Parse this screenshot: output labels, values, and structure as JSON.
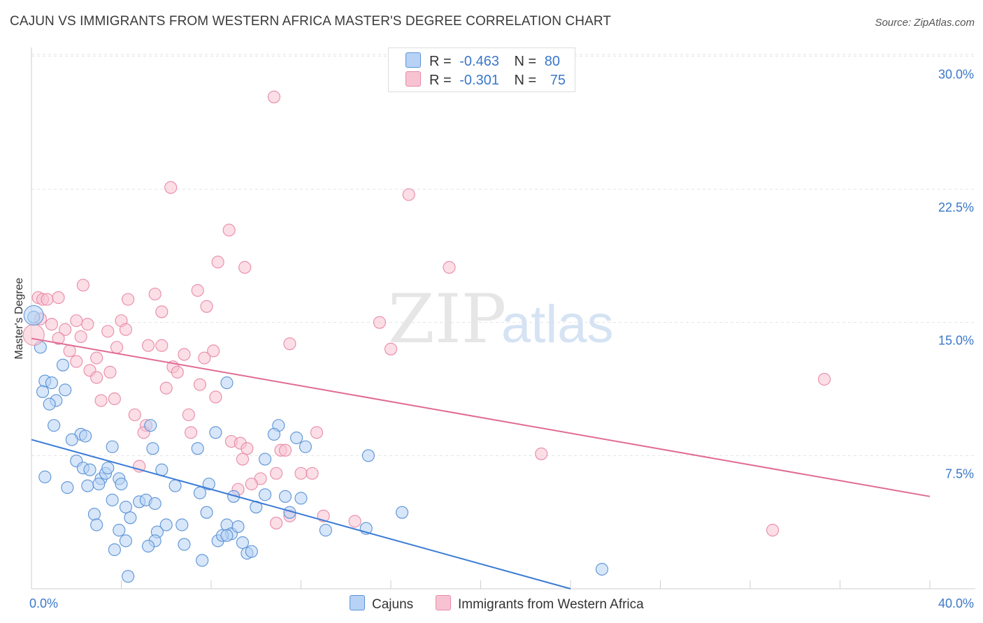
{
  "title": "CAJUN VS IMMIGRANTS FROM WESTERN AFRICA MASTER'S DEGREE CORRELATION CHART",
  "source": "Source: ZipAtlas.com",
  "watermark": {
    "zip": "ZIP",
    "atlas": "atlas"
  },
  "colors": {
    "blue_fill": "#b7d2f4",
    "blue_stroke": "#5b93d6",
    "blue_line": "#3a7bd5",
    "pink_fill": "#f7c3d2",
    "pink_stroke": "#e98aa8",
    "pink_line": "#e06b94",
    "tick_text": "#3a78c9",
    "grid": "#e3e3e3"
  },
  "legend": {
    "rows": [
      {
        "r_label": "R =",
        "r_value": "-0.463",
        "n_label": "N =",
        "n_value": "80"
      },
      {
        "r_label": "R =",
        "r_value": "-0.301",
        "n_label": "N =",
        "n_value": "75"
      }
    ]
  },
  "chart_data": {
    "type": "scatter",
    "title": "CAJUN VS IMMIGRANTS FROM WESTERN AFRICA MASTER'S DEGREE CORRELATION CHART",
    "xlabel": "",
    "ylabel": "Master's Degree",
    "xlim": [
      0,
      40
    ],
    "ylim": [
      0,
      30.8
    ],
    "x_tick_labels": [
      "0.0%",
      "40.0%"
    ],
    "y_ticks": [
      7.5,
      15.0,
      22.5,
      30.0
    ],
    "y_tick_labels": [
      "7.5%",
      "15.0%",
      "22.5%",
      "30.0%"
    ],
    "grid": true,
    "legend_position": "top-center",
    "series": [
      {
        "name": "Cajuns",
        "trend": {
          "x": [
            0,
            24
          ],
          "y": [
            8.4,
            0.0
          ]
        },
        "points": [
          [
            0.1,
            15.3
          ],
          [
            0.4,
            13.6
          ],
          [
            1.4,
            12.6
          ],
          [
            0.6,
            11.7
          ],
          [
            0.9,
            11.6
          ],
          [
            1.5,
            11.2
          ],
          [
            0.5,
            11.1
          ],
          [
            1.1,
            10.6
          ],
          [
            0.8,
            10.4
          ],
          [
            1.0,
            9.2
          ],
          [
            2.2,
            8.7
          ],
          [
            2.4,
            8.6
          ],
          [
            1.8,
            8.4
          ],
          [
            3.6,
            8.0
          ],
          [
            5.4,
            7.9
          ],
          [
            7.4,
            7.9
          ],
          [
            8.2,
            8.8
          ],
          [
            5.3,
            9.2
          ],
          [
            11.0,
            9.2
          ],
          [
            10.8,
            8.7
          ],
          [
            11.8,
            8.5
          ],
          [
            12.2,
            8.0
          ],
          [
            2.0,
            7.2
          ],
          [
            2.3,
            6.8
          ],
          [
            2.6,
            6.7
          ],
          [
            3.1,
            6.2
          ],
          [
            3.3,
            6.5
          ],
          [
            3.4,
            6.8
          ],
          [
            3.9,
            6.2
          ],
          [
            4.0,
            5.9
          ],
          [
            0.6,
            6.3
          ],
          [
            1.6,
            5.7
          ],
          [
            2.5,
            5.8
          ],
          [
            3.0,
            5.9
          ],
          [
            5.8,
            6.7
          ],
          [
            6.4,
            5.8
          ],
          [
            7.5,
            5.4
          ],
          [
            7.9,
            5.9
          ],
          [
            9.0,
            5.2
          ],
          [
            10.4,
            5.3
          ],
          [
            11.3,
            5.2
          ],
          [
            12.0,
            5.1
          ],
          [
            15.0,
            7.5
          ],
          [
            10.4,
            7.3
          ],
          [
            3.6,
            5.0
          ],
          [
            4.2,
            4.6
          ],
          [
            4.8,
            4.9
          ],
          [
            5.1,
            5.0
          ],
          [
            5.5,
            4.8
          ],
          [
            2.8,
            4.2
          ],
          [
            2.9,
            3.6
          ],
          [
            4.4,
            4.0
          ],
          [
            3.9,
            3.3
          ],
          [
            6.0,
            3.6
          ],
          [
            6.7,
            3.6
          ],
          [
            7.8,
            4.3
          ],
          [
            8.7,
            3.6
          ],
          [
            8.9,
            3.1
          ],
          [
            9.2,
            3.5
          ],
          [
            10.0,
            4.6
          ],
          [
            11.5,
            4.3
          ],
          [
            13.1,
            3.3
          ],
          [
            14.9,
            3.4
          ],
          [
            16.5,
            4.3
          ],
          [
            5.6,
            3.2
          ],
          [
            4.2,
            2.7
          ],
          [
            5.5,
            2.7
          ],
          [
            6.8,
            2.5
          ],
          [
            8.3,
            2.7
          ],
          [
            8.5,
            3.0
          ],
          [
            8.7,
            3.0
          ],
          [
            9.4,
            2.6
          ],
          [
            9.6,
            2.0
          ],
          [
            9.8,
            2.1
          ],
          [
            3.7,
            2.2
          ],
          [
            5.2,
            2.4
          ],
          [
            7.6,
            1.6
          ],
          [
            4.3,
            0.7
          ],
          [
            25.4,
            1.1
          ],
          [
            8.7,
            11.6
          ]
        ]
      },
      {
        "name": "Immigrants from Western Africa",
        "trend": {
          "x": [
            0,
            40
          ],
          "y": [
            14.1,
            5.2
          ]
        },
        "points": [
          [
            0.3,
            16.4
          ],
          [
            0.5,
            16.3
          ],
          [
            0.7,
            16.3
          ],
          [
            1.2,
            16.4
          ],
          [
            0.4,
            15.2
          ],
          [
            0.9,
            14.9
          ],
          [
            1.5,
            14.6
          ],
          [
            1.2,
            14.1
          ],
          [
            2.0,
            15.1
          ],
          [
            2.5,
            14.9
          ],
          [
            2.3,
            17.1
          ],
          [
            4.3,
            16.3
          ],
          [
            5.5,
            16.6
          ],
          [
            7.4,
            16.8
          ],
          [
            8.3,
            18.4
          ],
          [
            9.5,
            18.1
          ],
          [
            8.8,
            20.2
          ],
          [
            6.2,
            22.6
          ],
          [
            10.8,
            27.7
          ],
          [
            16.8,
            22.2
          ],
          [
            18.6,
            18.1
          ],
          [
            5.8,
            15.6
          ],
          [
            7.8,
            15.9
          ],
          [
            4.0,
            15.1
          ],
          [
            4.2,
            14.6
          ],
          [
            3.4,
            14.5
          ],
          [
            2.2,
            14.2
          ],
          [
            1.7,
            13.4
          ],
          [
            3.8,
            13.6
          ],
          [
            5.2,
            13.7
          ],
          [
            5.8,
            13.7
          ],
          [
            6.8,
            13.2
          ],
          [
            8.1,
            13.4
          ],
          [
            7.7,
            13.0
          ],
          [
            2.0,
            12.8
          ],
          [
            2.9,
            13.0
          ],
          [
            2.6,
            12.3
          ],
          [
            6.3,
            12.5
          ],
          [
            6.5,
            12.2
          ],
          [
            3.5,
            12.2
          ],
          [
            2.9,
            11.9
          ],
          [
            6.0,
            11.3
          ],
          [
            7.5,
            11.5
          ],
          [
            3.1,
            10.6
          ],
          [
            3.7,
            10.7
          ],
          [
            8.2,
            10.8
          ],
          [
            11.5,
            13.8
          ],
          [
            15.5,
            15.0
          ],
          [
            16.0,
            13.5
          ],
          [
            35.3,
            11.8
          ],
          [
            4.6,
            9.8
          ],
          [
            5.1,
            9.2
          ],
          [
            5.0,
            8.8
          ],
          [
            7.0,
            9.8
          ],
          [
            7.1,
            8.8
          ],
          [
            8.9,
            8.3
          ],
          [
            9.3,
            8.2
          ],
          [
            9.6,
            7.9
          ],
          [
            11.1,
            7.8
          ],
          [
            11.3,
            7.8
          ],
          [
            12.7,
            8.8
          ],
          [
            22.7,
            7.6
          ],
          [
            4.8,
            6.9
          ],
          [
            9.4,
            7.3
          ],
          [
            10.2,
            6.2
          ],
          [
            10.9,
            6.5
          ],
          [
            12.0,
            6.5
          ],
          [
            12.5,
            6.5
          ],
          [
            9.8,
            5.9
          ],
          [
            9.2,
            5.6
          ],
          [
            11.5,
            4.1
          ],
          [
            13.0,
            4.1
          ],
          [
            10.9,
            3.7
          ],
          [
            14.4,
            3.8
          ],
          [
            33.0,
            3.3
          ]
        ]
      }
    ]
  },
  "bottom_legend": {
    "cajuns": "Cajuns",
    "immigrants": "Immigrants from Western Africa"
  }
}
